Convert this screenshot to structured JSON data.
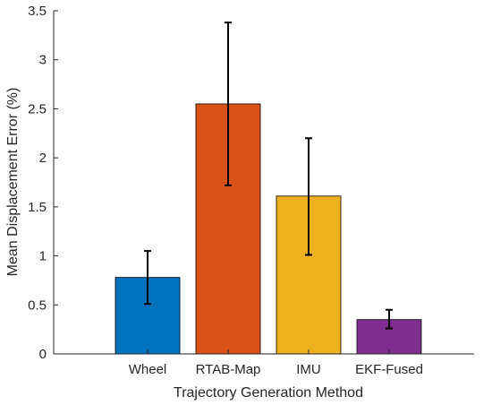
{
  "chart_data": {
    "type": "bar",
    "title": "",
    "xlabel": "Trajectory Generation Method",
    "ylabel": "Mean Displacement Error (%)",
    "categories": [
      "Wheel",
      "RTAB-Map",
      "IMU",
      "EKF-Fused"
    ],
    "values": [
      0.78,
      2.55,
      1.61,
      0.35
    ],
    "error_low": [
      0.51,
      1.72,
      1.01,
      0.26
    ],
    "error_high": [
      1.05,
      3.38,
      2.2,
      0.45
    ],
    "bar_colors": [
      "#0072BD",
      "#D95319",
      "#EDB120",
      "#7E2F8E"
    ],
    "ylim": [
      0,
      3.5
    ],
    "yticks": [
      0,
      0.5,
      1,
      1.5,
      2,
      2.5,
      3,
      3.5
    ],
    "ytick_labels": [
      "0",
      "0.5",
      "1",
      "1.5",
      "2",
      "2.5",
      "3",
      "3.5"
    ],
    "grid": false,
    "legend": "none"
  }
}
